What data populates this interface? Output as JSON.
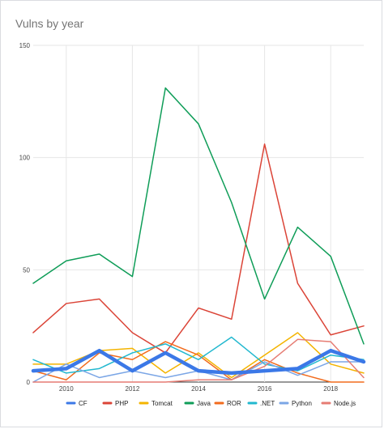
{
  "chart_data": {
    "type": "line",
    "title": "Vulns by year",
    "xlabel": "",
    "ylabel": "",
    "x": [
      2009,
      2010,
      2011,
      2012,
      2013,
      2014,
      2015,
      2016,
      2017,
      2018,
      2019
    ],
    "xlim": [
      2009,
      2019
    ],
    "ylim": [
      0,
      150
    ],
    "x_ticks": [
      "2010",
      "2012",
      "2014",
      "2016",
      "2018"
    ],
    "y_ticks": [
      "0",
      "50",
      "100",
      "150"
    ],
    "grid": true,
    "legend_position": "bottom",
    "series": [
      {
        "name": "CF",
        "color": "#3b78e7",
        "width": 4.5,
        "values": [
          5,
          6,
          14,
          5,
          13,
          5,
          4,
          5,
          6,
          14,
          9
        ]
      },
      {
        "name": "PHP",
        "color": "#db4437",
        "width": 1.5,
        "values": [
          22,
          35,
          37,
          22,
          13,
          33,
          28,
          106,
          44,
          21,
          25
        ]
      },
      {
        "name": "Tomcat",
        "color": "#f4b400",
        "width": 1.5,
        "values": [
          8,
          8,
          14,
          15,
          4,
          13,
          2,
          12,
          22,
          8,
          4
        ]
      },
      {
        "name": "Java",
        "color": "#0f9d58",
        "width": 1.5,
        "values": [
          44,
          54,
          57,
          47,
          131,
          115,
          80,
          37,
          69,
          56,
          17
        ]
      },
      {
        "name": "ROR",
        "color": "#f26b1d",
        "width": 1.5,
        "values": [
          5,
          1,
          13,
          10,
          18,
          12,
          1,
          10,
          4,
          0,
          0
        ]
      },
      {
        "name": ".NET",
        "color": "#22b8cf",
        "width": 1.5,
        "values": [
          10,
          4,
          6,
          13,
          17,
          10,
          20,
          8,
          5,
          12,
          10
        ]
      },
      {
        "name": "Python",
        "color": "#7ba6e6",
        "width": 1.5,
        "values": [
          0,
          8,
          2,
          5,
          2,
          5,
          1,
          9,
          3,
          9,
          9
        ]
      },
      {
        "name": "Node.js",
        "color": "#e67c73",
        "width": 1.5,
        "values": [
          0,
          0,
          0,
          0,
          0,
          1,
          1,
          7,
          19,
          18,
          2
        ]
      }
    ]
  }
}
